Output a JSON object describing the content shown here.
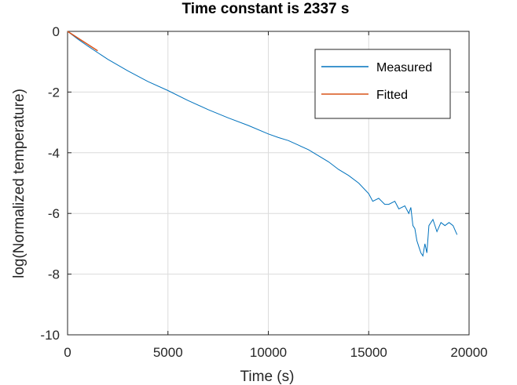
{
  "chart_data": {
    "type": "line",
    "title": "Time constant is 2337 s",
    "xlabel": "Time (s)",
    "ylabel": "log(Normalized temperature)",
    "xlim": [
      0,
      20000
    ],
    "ylim": [
      -10,
      0
    ],
    "x_ticks": [
      0,
      5000,
      10000,
      15000,
      20000
    ],
    "y_ticks": [
      0,
      -2,
      -4,
      -6,
      -8,
      -10
    ],
    "x_tick_labels": [
      "0",
      "5000",
      "10000",
      "15000",
      "20000"
    ],
    "y_tick_labels": [
      "0",
      "-2",
      "-4",
      "-6",
      "-8",
      "-10"
    ],
    "grid": true,
    "legend_position": "top-right",
    "series": [
      {
        "name": "Measured",
        "color": "#0072BD",
        "x": [
          0,
          500,
          1000,
          2000,
          3000,
          4000,
          5000,
          6000,
          7000,
          8000,
          9000,
          10000,
          10500,
          11000,
          11500,
          12000,
          12500,
          13000,
          13500,
          14000,
          14500,
          15000,
          15200,
          15500,
          15800,
          16000,
          16300,
          16500,
          16800,
          17000,
          17100,
          17200,
          17300,
          17400,
          17500,
          17600,
          17700,
          17800,
          17900,
          18000,
          18200,
          18400,
          18600,
          18800,
          19000,
          19200,
          19400
        ],
        "y": [
          0,
          -0.25,
          -0.48,
          -0.92,
          -1.3,
          -1.65,
          -1.95,
          -2.28,
          -2.58,
          -2.85,
          -3.1,
          -3.38,
          -3.5,
          -3.6,
          -3.75,
          -3.9,
          -4.1,
          -4.3,
          -4.55,
          -4.75,
          -5.0,
          -5.35,
          -5.6,
          -5.5,
          -5.7,
          -5.7,
          -5.6,
          -5.85,
          -5.75,
          -6.0,
          -5.8,
          -6.4,
          -6.5,
          -6.9,
          -7.1,
          -7.3,
          -7.4,
          -7.0,
          -7.3,
          -6.4,
          -6.2,
          -6.6,
          -6.3,
          -6.4,
          -6.3,
          -6.4,
          -6.7
        ]
      },
      {
        "name": "Fitted",
        "color": "#D95319",
        "x": [
          0,
          1500
        ],
        "y": [
          0,
          -0.64
        ]
      }
    ]
  }
}
